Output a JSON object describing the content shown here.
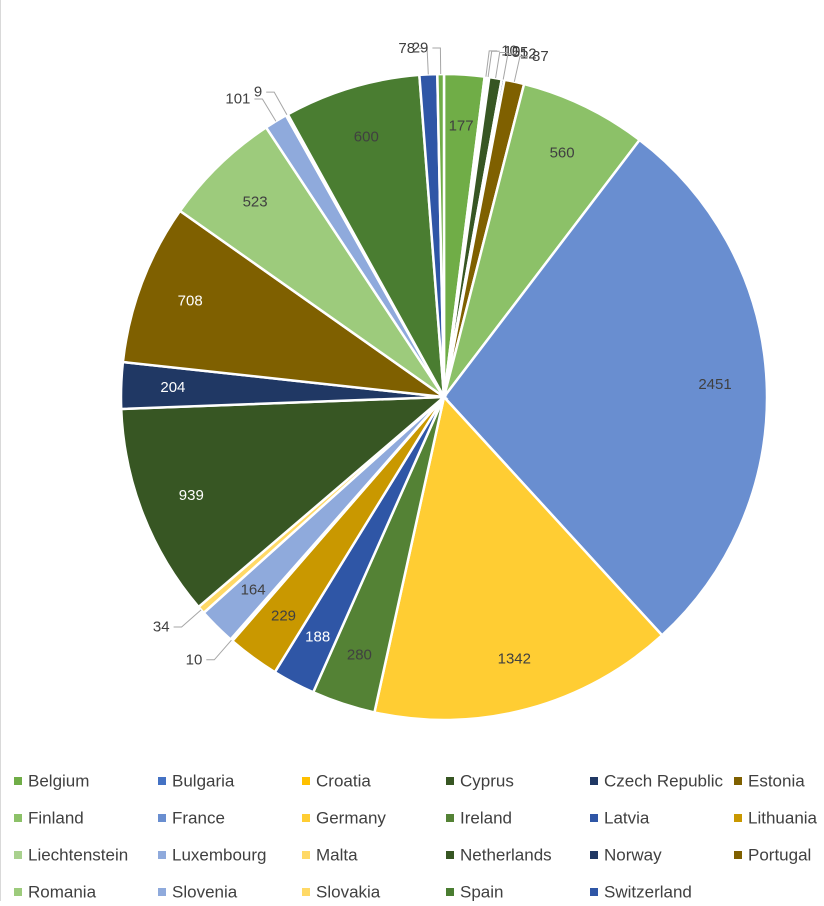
{
  "chart_data": {
    "type": "pie",
    "title": "",
    "start_angle_deg": 0,
    "direction": "clockwise",
    "slices": [
      {
        "label": "Belgium",
        "value": 177,
        "color": "#70ad47"
      },
      {
        "label": "Bulgaria",
        "value": 10,
        "color": "#4472c4"
      },
      {
        "label": "Croatia",
        "value": 10,
        "color": "#ffc000"
      },
      {
        "label": "Cyprus",
        "value": 55,
        "color": "#375623"
      },
      {
        "label": "Czech Republic",
        "value": 12,
        "color": "#203864"
      },
      {
        "label": "Estonia",
        "value": 87,
        "color": "#7f6000"
      },
      {
        "label": "Finland",
        "value": 560,
        "color": "#8cc168"
      },
      {
        "label": "France",
        "value": 2451,
        "color": "#698ed0"
      },
      {
        "label": "Germany",
        "value": 1342,
        "color": "#ffcd33"
      },
      {
        "label": "Ireland",
        "value": 280,
        "color": "#548235"
      },
      {
        "label": "Latvia",
        "value": 188,
        "color": "#2f56a6"
      },
      {
        "label": "Lithuania",
        "value": 229,
        "color": "#c99800"
      },
      {
        "label": "Liechtenstein",
        "value": 10,
        "color": "#a9d18e"
      },
      {
        "label": "Luxembourg",
        "value": 164,
        "color": "#8faadc"
      },
      {
        "label": "Malta",
        "value": 34,
        "color": "#ffd966"
      },
      {
        "label": "Netherlands",
        "value": 939,
        "color": "#375623"
      },
      {
        "label": "Norway",
        "value": 204,
        "color": "#203864"
      },
      {
        "label": "Portugal",
        "value": 708,
        "color": "#7f6000"
      },
      {
        "label": "Romania",
        "value": 523,
        "color": "#9dcb7c"
      },
      {
        "label": "Slovenia",
        "value": 101,
        "color": "#8faadc"
      },
      {
        "label": "Slovakia",
        "value": 9,
        "color": "#ffd966"
      },
      {
        "label": "Spain",
        "value": 600,
        "color": "#4a7d31"
      },
      {
        "label": "Switzerland",
        "value": 78,
        "color": "#2f56a6"
      },
      {
        "label": "",
        "value": 29,
        "color": "#70ad47"
      }
    ],
    "legend": {
      "position": "bottom",
      "columns": 6
    },
    "data_label_color_light": "#ffffff",
    "data_label_color_dark": "#404040"
  }
}
